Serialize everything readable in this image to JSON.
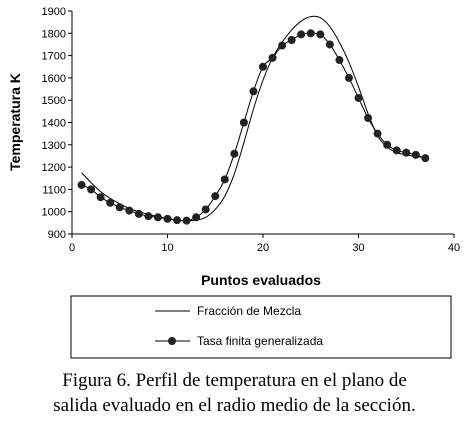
{
  "chart_data": {
    "type": "line",
    "title": "",
    "xlabel": "Puntos evaluados",
    "ylabel": "Temperatura K",
    "xlim": [
      0,
      40
    ],
    "ylim": [
      900,
      1900
    ],
    "x_ticks": [
      0,
      10,
      20,
      30,
      40
    ],
    "y_ticks": [
      900,
      1000,
      1100,
      1200,
      1300,
      1400,
      1500,
      1600,
      1700,
      1800,
      1900
    ],
    "grid": false,
    "legend_position": "bottom",
    "series": [
      {
        "name": "Fracción de Mezcla",
        "style": "line",
        "color": "#000000",
        "x": [
          1,
          2,
          3,
          4,
          5,
          6,
          7,
          8,
          9,
          10,
          11,
          12,
          13,
          14,
          15,
          16,
          17,
          18,
          19,
          20,
          21,
          22,
          23,
          24,
          25,
          26,
          27,
          28,
          29,
          30,
          31,
          32,
          33,
          34,
          35,
          36,
          37
        ],
        "y": [
          1175,
          1130,
          1090,
          1060,
          1035,
          1015,
          1000,
          988,
          978,
          970,
          963,
          960,
          962,
          975,
          1010,
          1070,
          1170,
          1310,
          1460,
          1590,
          1690,
          1760,
          1815,
          1855,
          1875,
          1870,
          1830,
          1760,
          1670,
          1560,
          1440,
          1340,
          1290,
          1265,
          1255,
          1248,
          1242
        ]
      },
      {
        "name": "Tasa finita generalizada",
        "style": "line-marker",
        "color": "#000000",
        "x": [
          1,
          2,
          3,
          4,
          5,
          6,
          7,
          8,
          9,
          10,
          11,
          12,
          13,
          14,
          15,
          16,
          17,
          18,
          19,
          20,
          21,
          22,
          23,
          24,
          25,
          26,
          27,
          28,
          29,
          30,
          31,
          32,
          33,
          34,
          35,
          36,
          37
        ],
        "y": [
          1120,
          1100,
          1065,
          1040,
          1020,
          1005,
          990,
          980,
          975,
          968,
          962,
          960,
          975,
          1010,
          1070,
          1145,
          1260,
          1400,
          1540,
          1650,
          1690,
          1745,
          1770,
          1795,
          1800,
          1795,
          1750,
          1680,
          1600,
          1510,
          1420,
          1350,
          1300,
          1275,
          1265,
          1255,
          1240
        ]
      }
    ]
  },
  "caption": {
    "line1": "Figura 6. Perfil de temperatura en el plano de",
    "line2": "salida evaluado en el radio medio de la sección."
  }
}
